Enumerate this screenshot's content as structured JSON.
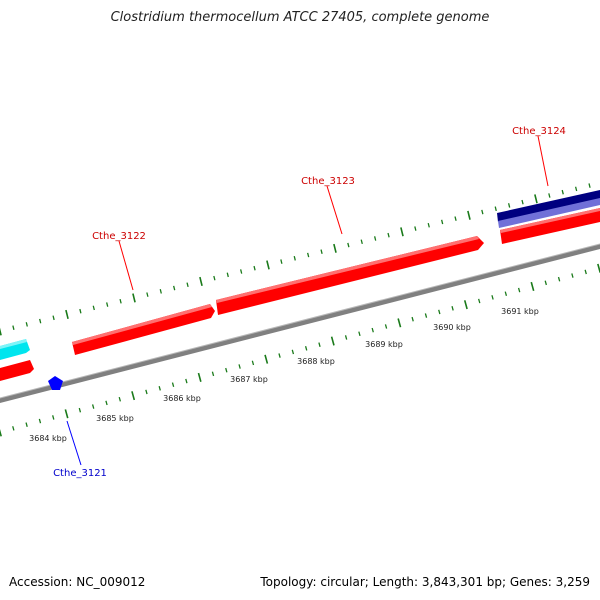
{
  "title": "Clostridium thermocellum ATCC 27405, complete genome",
  "footer": {
    "accession": "Accession: NC_009012",
    "topology": "Topology: circular; Length: 3,843,301 bp; Genes: 3,259"
  },
  "colors": {
    "forward_gene": "#ff0000",
    "reverse_gene": "#0000ff",
    "cyan_gene": "#00e5ee",
    "navy_gene": "#000080",
    "lavender_gene": "#7070d8",
    "backbone": "#808080",
    "ticks": "#1a7a1a",
    "label_text": "#222222"
  },
  "gene_labels": [
    {
      "name": "Cthe_3121",
      "strand": "reverse"
    },
    {
      "name": "Cthe_3122",
      "strand": "forward"
    },
    {
      "name": "Cthe_3123",
      "strand": "forward"
    },
    {
      "name": "Cthe_3124",
      "strand": "forward"
    }
  ],
  "kbp_labels": [
    "3684 kbp",
    "3685 kbp",
    "3686 kbp",
    "3687 kbp",
    "3688 kbp",
    "3689 kbp",
    "3690 kbp",
    "3691 kbp"
  ]
}
